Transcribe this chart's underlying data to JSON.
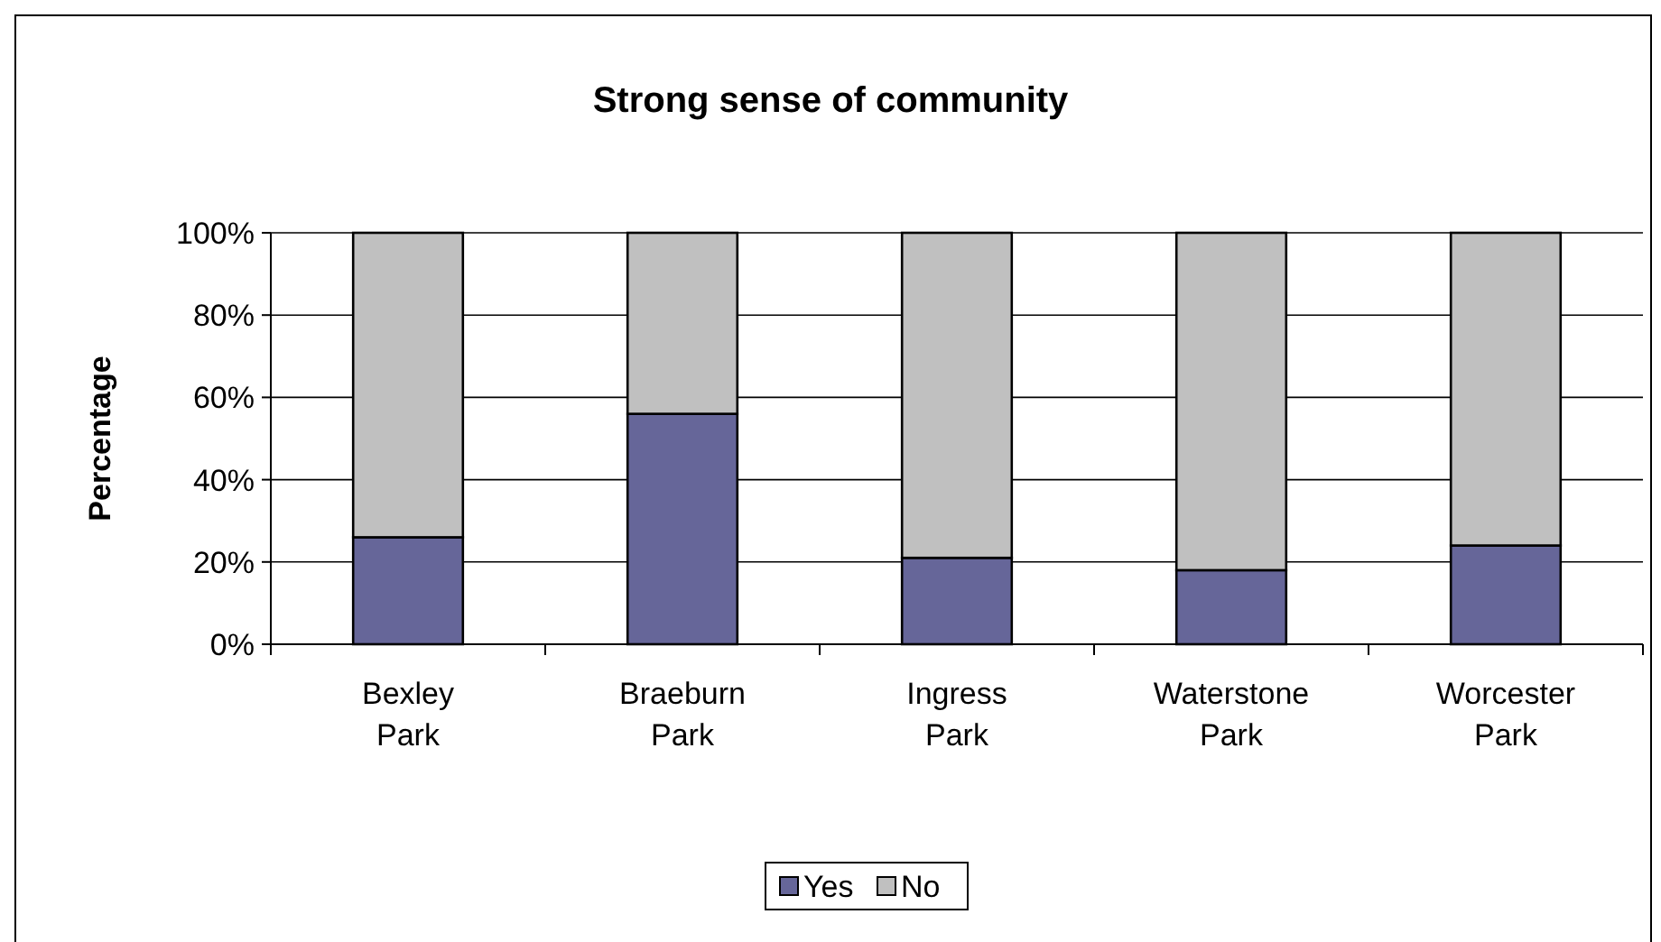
{
  "chart_data": {
    "type": "bar",
    "title": "Strong sense of community",
    "ylabel": "Percentage",
    "categories": [
      "Bexley Park",
      "Braeburn Park",
      "Ingress Park",
      "Waterstone Park",
      "Worcester Park"
    ],
    "stacked": true,
    "series": [
      {
        "name": "Yes",
        "color": "#666699",
        "values": [
          26,
          56,
          21,
          18,
          24
        ]
      },
      {
        "name": "No",
        "color": "#c0c0c0",
        "values": [
          74,
          44,
          79,
          82,
          76
        ]
      }
    ],
    "ylim": [
      0,
      100
    ],
    "yticks": [
      {
        "value": 0,
        "label": "0%"
      },
      {
        "value": 20,
        "label": "20%"
      },
      {
        "value": 40,
        "label": "40%"
      },
      {
        "value": 60,
        "label": "60%"
      },
      {
        "value": 80,
        "label": "80%"
      },
      {
        "value": 100,
        "label": "100%"
      }
    ],
    "grid": "y",
    "legend": "bottom"
  }
}
